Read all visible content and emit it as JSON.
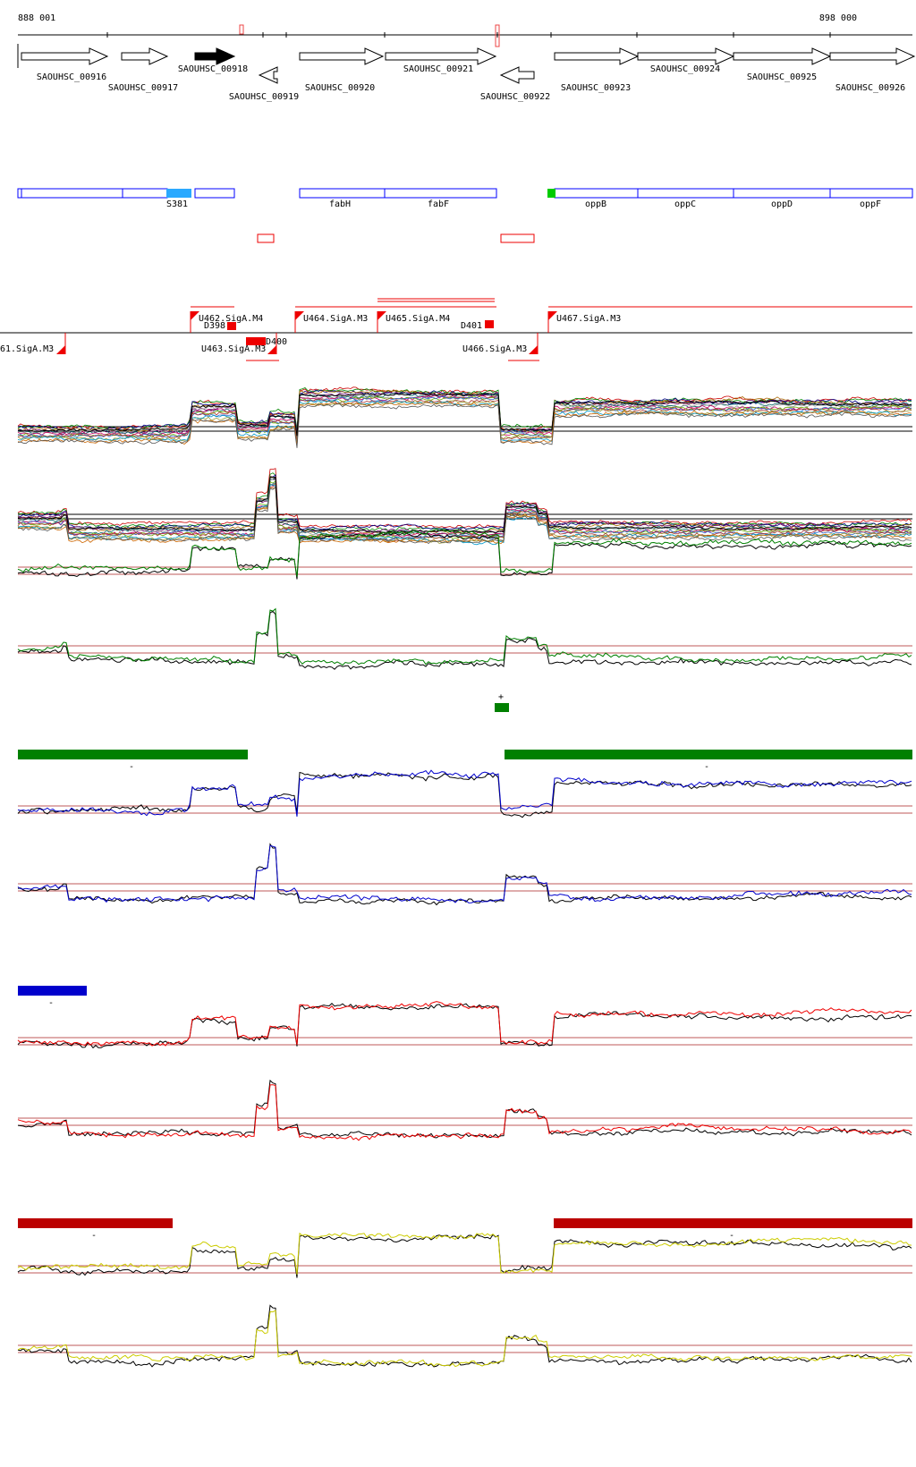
{
  "coords": {
    "start": "888 001",
    "end": "898 000"
  },
  "colors": {
    "gene_stroke": "#000000",
    "annot_blue": "#0000ff",
    "annot_fill_blue": "#2aa9ff",
    "annot_green": "#00cc00",
    "red": "#ee0000",
    "dark_red": "#bb0000",
    "green": "#008000",
    "blue": "#0000cc",
    "yellow": "#cccc00",
    "black": "#000000"
  },
  "genes": [
    {
      "label": "SAOUHSC_00916",
      "strand": "+"
    },
    {
      "label": "SAOUHSC_00917",
      "strand": "+"
    },
    {
      "label": "SAOUHSC_00918",
      "strand": "+",
      "filled": true
    },
    {
      "label": "SAOUHSC_00919",
      "strand": "-"
    },
    {
      "label": "SAOUHSC_00920",
      "strand": "+"
    },
    {
      "label": "SAOUHSC_00921",
      "strand": "+"
    },
    {
      "label": "SAOUHSC_00922",
      "strand": "-"
    },
    {
      "label": "SAOUHSC_00923",
      "strand": "+"
    },
    {
      "label": "SAOUHSC_00924",
      "strand": "+"
    },
    {
      "label": "SAOUHSC_00925",
      "strand": "+"
    },
    {
      "label": "SAOUHSC_00926",
      "strand": "+"
    }
  ],
  "annotations": [
    "S381",
    "fabH",
    "fabF",
    "oppB",
    "oppC",
    "oppD",
    "oppF"
  ],
  "features": [
    {
      "label": "U462.SigA.M4"
    },
    {
      "label": "D398"
    },
    {
      "label": "U464.SigA.M3"
    },
    {
      "label": "U465.SigA.M4"
    },
    {
      "label": "D401"
    },
    {
      "label": "U467.SigA.M3"
    },
    {
      "label": "61.SigA.M3"
    },
    {
      "label": "U463.SigA.M3"
    },
    {
      "label": "D400"
    },
    {
      "label": "U466.SigA.M3"
    }
  ],
  "segments": [
    {
      "color": "green",
      "sign": "+"
    },
    {
      "color": "green",
      "sign": "-"
    },
    {
      "color": "green",
      "sign": "-"
    },
    {
      "color": "blue",
      "sign": "-"
    },
    {
      "color": "dark_red",
      "sign": "-"
    },
    {
      "color": "dark_red",
      "sign": "-"
    }
  ],
  "tracks": [
    {
      "kind": "multi",
      "pattern": "plus"
    },
    {
      "kind": "multi",
      "pattern": "minus"
    },
    {
      "kind": "pair",
      "color": "green",
      "pattern": "plus"
    },
    {
      "kind": "pair",
      "color": "green",
      "pattern": "minus"
    },
    {
      "kind": "pair",
      "color": "blue",
      "pattern": "plus"
    },
    {
      "kind": "pair",
      "color": "blue",
      "pattern": "minus"
    },
    {
      "kind": "pair",
      "color": "red",
      "pattern": "plus"
    },
    {
      "kind": "pair",
      "color": "red",
      "pattern": "minus"
    },
    {
      "kind": "pair",
      "color": "yellow",
      "pattern": "plus"
    },
    {
      "kind": "pair",
      "color": "yellow",
      "pattern": "minus"
    }
  ]
}
